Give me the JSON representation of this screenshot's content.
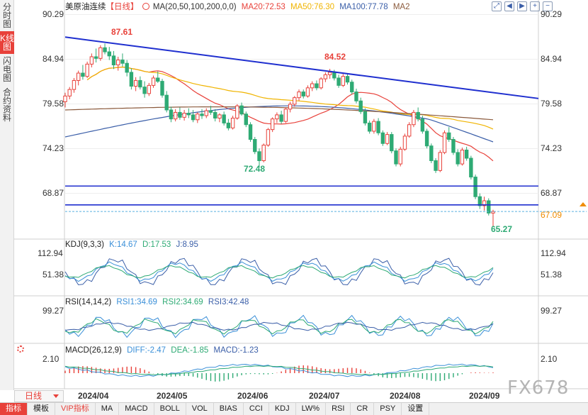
{
  "left_tabs": [
    {
      "label": "分时图",
      "active": false
    },
    {
      "label": "K线图",
      "active": true
    },
    {
      "label": "闪电图",
      "active": false
    },
    {
      "label": "合约资料",
      "active": false
    }
  ],
  "main_legend": {
    "title": "美原油连续",
    "period": "【日线】",
    "ma_settings": "MA(20,50,100,200,0,0)",
    "ma20": "MA20:72.53",
    "ma50": "MA50:76.30",
    "ma100": "MA100:77.78",
    "ma2": "MA2"
  },
  "kdj_legend": {
    "name": "KDJ(9,3,3)",
    "k": "K:14.67",
    "d": "D:17.53",
    "j": "J:8.95"
  },
  "rsi_legend": {
    "name": "RSI(14,14,2)",
    "rsi1": "RSI1:34.69",
    "rsi2": "RSI2:34.69",
    "rsi3": "RSI3:42.48"
  },
  "macd_legend": {
    "name": "MACD(26,12,9)",
    "diff": "DIFF:-2.47",
    "dea": "DEA:-1.85",
    "macd": "MACD:-1.23"
  },
  "price_axis_left": [
    "90.29",
    "84.94",
    "79.58",
    "74.23",
    "68.87"
  ],
  "price_axis_right": [
    "90.29",
    "84.94",
    "79.58",
    "74.23",
    "68.87"
  ],
  "last_price": "67.09",
  "kdj_axis": [
    "112.94",
    "51.38"
  ],
  "rsi_axis": [
    "99.27"
  ],
  "macd_axis": [
    "2.10"
  ],
  "annotations": {
    "high1": "87.61",
    "high2": "84.52",
    "low1": "72.48",
    "low2": "65.27"
  },
  "dates": [
    "2024/04",
    "2024/05",
    "2024/06",
    "2024/07",
    "2024/08",
    "2024/09"
  ],
  "period_button": "日线",
  "bottom_tabs": [
    "指标",
    "模板",
    "VIP指标",
    "MA",
    "MACD",
    "BOLL",
    "VOL",
    "BIAS",
    "CCI",
    "KDJ",
    "LW%",
    "RSI",
    "CR",
    "PSY",
    "设置"
  ],
  "toolbar_icons": [
    "expand-icon",
    "arrow-left-icon",
    "arrow-right-icon",
    "zoom-in-icon",
    "zoom-out-icon"
  ],
  "watermark": "FX678",
  "colors": {
    "up": "#e8413a",
    "down": "#2eaa74",
    "ma20": "#e8413a",
    "ma50": "#f0b400",
    "ma100": "#3a5ea8",
    "ma200": "#8b5a3c",
    "trendline": "#1f2fcf",
    "support": "#1f2fcf",
    "last_price": "#f08c00"
  },
  "chart_data": {
    "type": "candlestick",
    "ylim": [
      64.5,
      91.2
    ],
    "dates": [
      "2024/04",
      "2024/05",
      "2024/06",
      "2024/07",
      "2024/08",
      "2024/09"
    ],
    "ohlc": [
      [
        80.5,
        81.6,
        79.8,
        81.2
      ],
      [
        81.2,
        82.3,
        80.8,
        82.0
      ],
      [
        82.0,
        83.4,
        81.6,
        83.1
      ],
      [
        83.1,
        84.3,
        82.5,
        84.0
      ],
      [
        84.0,
        85.0,
        83.2,
        83.6
      ],
      [
        83.6,
        85.4,
        83.4,
        85.1
      ],
      [
        85.1,
        86.4,
        84.7,
        86.0
      ],
      [
        86.0,
        87.0,
        85.3,
        85.8
      ],
      [
        85.8,
        87.4,
        85.5,
        87.1
      ],
      [
        87.1,
        87.61,
        86.3,
        86.6
      ],
      [
        86.6,
        87.2,
        85.6,
        86.1
      ],
      [
        86.1,
        86.7,
        84.5,
        85.0
      ],
      [
        85.0,
        86.0,
        84.3,
        85.6
      ],
      [
        85.6,
        86.4,
        84.8,
        85.2
      ],
      [
        85.2,
        85.6,
        83.6,
        84.1
      ],
      [
        84.1,
        84.6,
        82.0,
        82.4
      ],
      [
        82.4,
        83.5,
        81.8,
        83.1
      ],
      [
        83.1,
        83.6,
        82.0,
        82.3
      ],
      [
        82.3,
        83.0,
        81.0,
        81.5
      ],
      [
        81.5,
        82.8,
        81.2,
        82.5
      ],
      [
        82.5,
        83.7,
        82.2,
        83.4
      ],
      [
        83.4,
        84.2,
        82.8,
        83.0
      ],
      [
        83.0,
        83.3,
        81.0,
        81.3
      ],
      [
        81.3,
        81.8,
        79.2,
        79.5
      ],
      [
        79.5,
        79.9,
        78.0,
        78.4
      ],
      [
        78.4,
        79.6,
        78.1,
        79.2
      ],
      [
        79.2,
        79.8,
        78.3,
        78.6
      ],
      [
        78.6,
        79.5,
        78.2,
        79.1
      ],
      [
        79.1,
        79.7,
        78.5,
        78.9
      ],
      [
        78.9,
        79.5,
        78.0,
        78.3
      ],
      [
        78.3,
        79.2,
        77.9,
        79.0
      ],
      [
        79.0,
        79.6,
        78.4,
        78.8
      ],
      [
        78.8,
        79.7,
        78.5,
        79.4
      ],
      [
        79.4,
        80.0,
        78.9,
        79.2
      ],
      [
        79.2,
        79.6,
        78.1,
        78.5
      ],
      [
        78.5,
        79.1,
        78.0,
        78.9
      ],
      [
        78.9,
        79.3,
        77.6,
        77.9
      ],
      [
        77.9,
        78.4,
        77.0,
        77.3
      ],
      [
        77.3,
        78.8,
        77.1,
        78.5
      ],
      [
        78.5,
        80.2,
        78.3,
        80.0
      ],
      [
        80.0,
        80.4,
        78.8,
        79.0
      ],
      [
        79.0,
        79.3,
        77.4,
        77.7
      ],
      [
        77.7,
        78.0,
        75.6,
        75.9
      ],
      [
        75.9,
        76.2,
        74.1,
        74.4
      ],
      [
        74.4,
        74.8,
        72.48,
        73.3
      ],
      [
        73.3,
        75.4,
        73.1,
        75.2
      ],
      [
        75.2,
        77.3,
        75.0,
        77.1
      ],
      [
        77.1,
        78.6,
        76.8,
        78.4
      ],
      [
        78.4,
        79.2,
        77.9,
        78.9
      ],
      [
        78.9,
        79.4,
        77.8,
        78.1
      ],
      [
        78.1,
        79.8,
        77.9,
        79.6
      ],
      [
        79.6,
        80.5,
        79.2,
        80.2
      ],
      [
        80.2,
        81.2,
        79.9,
        81.0
      ],
      [
        81.0,
        82.0,
        80.6,
        81.7
      ],
      [
        81.7,
        82.0,
        80.9,
        81.2
      ],
      [
        81.2,
        82.5,
        81.0,
        82.2
      ],
      [
        82.2,
        83.0,
        81.8,
        82.7
      ],
      [
        82.7,
        83.1,
        81.9,
        82.2
      ],
      [
        82.2,
        83.5,
        82.0,
        83.3
      ],
      [
        83.3,
        84.1,
        82.9,
        83.8
      ],
      [
        83.8,
        84.52,
        83.3,
        84.1
      ],
      [
        84.1,
        84.4,
        83.1,
        83.4
      ],
      [
        83.4,
        83.8,
        82.2,
        82.5
      ],
      [
        82.5,
        83.9,
        82.3,
        83.6
      ],
      [
        83.6,
        84.0,
        82.6,
        82.9
      ],
      [
        82.9,
        83.2,
        81.4,
        81.7
      ],
      [
        81.7,
        82.1,
        80.3,
        80.6
      ],
      [
        80.6,
        81.0,
        79.0,
        79.3
      ],
      [
        79.3,
        79.7,
        77.6,
        77.9
      ],
      [
        77.9,
        78.2,
        76.6,
        76.9
      ],
      [
        76.9,
        78.4,
        76.6,
        78.1
      ],
      [
        78.1,
        78.5,
        76.4,
        76.7
      ],
      [
        76.7,
        77.0,
        75.1,
        75.4
      ],
      [
        75.4,
        76.8,
        75.2,
        76.5
      ],
      [
        76.5,
        76.8,
        74.2,
        74.5
      ],
      [
        74.5,
        74.8,
        72.6,
        72.9
      ],
      [
        72.9,
        75.0,
        72.6,
        74.7
      ],
      [
        74.7,
        76.6,
        74.5,
        76.3
      ],
      [
        76.3,
        78.0,
        76.1,
        77.7
      ],
      [
        77.7,
        79.5,
        77.4,
        79.2
      ],
      [
        79.2,
        79.8,
        78.1,
        78.4
      ],
      [
        78.4,
        78.8,
        76.6,
        76.9
      ],
      [
        76.9,
        77.2,
        74.8,
        75.1
      ],
      [
        75.1,
        75.4,
        73.0,
        73.3
      ],
      [
        73.3,
        73.6,
        71.8,
        72.1
      ],
      [
        72.1,
        74.6,
        71.9,
        74.3
      ],
      [
        74.3,
        77.0,
        74.1,
        76.7
      ],
      [
        76.7,
        77.4,
        75.6,
        75.9
      ],
      [
        75.9,
        76.2,
        74.0,
        74.3
      ],
      [
        74.3,
        74.7,
        72.6,
        72.9
      ],
      [
        72.9,
        74.9,
        72.7,
        74.6
      ],
      [
        74.6,
        75.0,
        73.3,
        73.6
      ],
      [
        73.6,
        73.9,
        71.0,
        71.3
      ],
      [
        71.3,
        71.6,
        68.6,
        68.9
      ],
      [
        68.9,
        69.3,
        67.4,
        67.8
      ],
      [
        67.8,
        68.9,
        67.2,
        68.4
      ],
      [
        68.4,
        68.7,
        66.6,
        66.9
      ],
      [
        66.9,
        67.3,
        65.27,
        67.09
      ]
    ],
    "trendline": [
      [
        0,
        88.4
      ],
      [
        99,
        80.9
      ]
    ],
    "horizontal_lines": [
      70.2,
      67.9
    ],
    "ma20_last": 72.53,
    "ma50_last": 76.3,
    "ma100_last": 77.78
  }
}
